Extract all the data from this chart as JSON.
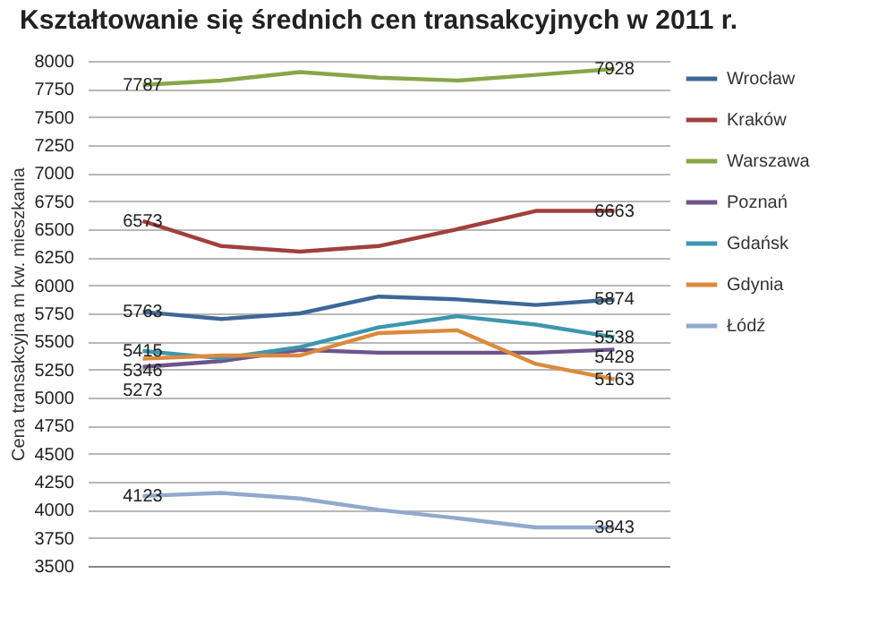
{
  "chart_data": {
    "type": "line",
    "title": "Kształtowanie się średnich cen transakcyjnych w 2011 r.",
    "ylabel": "Cena transakcyjna m kw. mieszkania",
    "categories": [
      null,
      null,
      null,
      null,
      null,
      null,
      null
    ],
    "ylim": [
      3500,
      8000
    ],
    "yticks": [
      3500,
      3750,
      4000,
      4250,
      4500,
      4750,
      5000,
      5250,
      5500,
      5750,
      6000,
      6250,
      6500,
      6750,
      7000,
      7250,
      7500,
      7750,
      8000
    ],
    "grid": "y",
    "legend": "right",
    "marker": "none",
    "line_style": "solid",
    "series": [
      {
        "name": "Wrocław",
        "color": "#3e6797",
        "values": [
          5763,
          5700,
          5750,
          5900,
          5875,
          5825,
          5874
        ],
        "value_labels": [
          "5763",
          null,
          null,
          null,
          null,
          null,
          "5874"
        ]
      },
      {
        "name": "Kraków",
        "color": "#a0403e",
        "values": [
          6573,
          6350,
          6300,
          6350,
          6500,
          6663,
          6663
        ],
        "value_labels": [
          "6573",
          null,
          null,
          null,
          null,
          null,
          "6663"
        ]
      },
      {
        "name": "Warszawa",
        "color": "#87a64a",
        "values": [
          7787,
          7825,
          7900,
          7850,
          7825,
          7875,
          7928
        ],
        "value_labels": [
          "7787",
          null,
          null,
          null,
          null,
          null,
          "7928"
        ]
      },
      {
        "name": "Poznań",
        "color": "#6e548d",
        "values": [
          5273,
          5325,
          5425,
          5400,
          5400,
          5400,
          5428
        ],
        "value_labels": [
          "5273",
          null,
          null,
          null,
          null,
          null,
          "5428"
        ]
      },
      {
        "name": "Gdańsk",
        "color": "#3d96ae",
        "values": [
          5415,
          5350,
          5450,
          5625,
          5725,
          5650,
          5538
        ],
        "value_labels": [
          "5415",
          null,
          null,
          null,
          null,
          null,
          "5538"
        ]
      },
      {
        "name": "Gdynia",
        "color": "#db8a3d",
        "values": [
          5346,
          5375,
          5375,
          5575,
          5600,
          5300,
          5163
        ],
        "value_labels": [
          "5346",
          null,
          null,
          null,
          null,
          null,
          "5163"
        ]
      },
      {
        "name": "Łódź",
        "color": "#91a9cd",
        "values": [
          4123,
          4150,
          4100,
          4000,
          3925,
          3843,
          3843
        ],
        "value_labels": [
          "4123",
          null,
          null,
          null,
          null,
          null,
          "3843"
        ]
      }
    ]
  }
}
